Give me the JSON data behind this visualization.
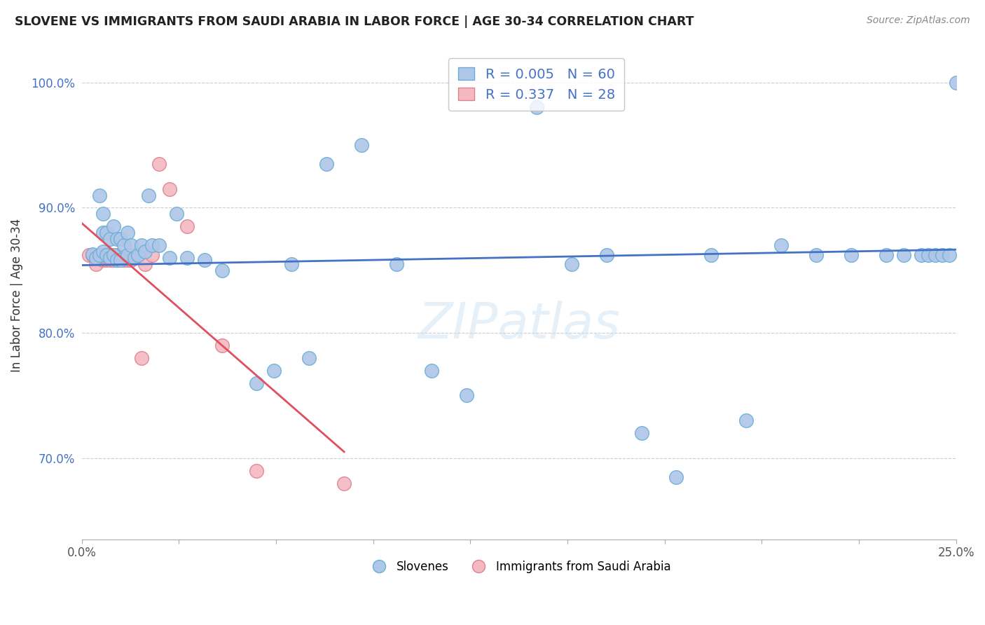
{
  "title": "SLOVENE VS IMMIGRANTS FROM SAUDI ARABIA IN LABOR FORCE | AGE 30-34 CORRELATION CHART",
  "source": "Source: ZipAtlas.com",
  "ylabel": "In Labor Force | Age 30-34",
  "y_ticks": [
    0.7,
    0.8,
    0.9,
    1.0
  ],
  "y_tick_labels": [
    "70.0%",
    "80.0%",
    "90.0%",
    "100.0%"
  ],
  "xmin": 0.0,
  "xmax": 0.25,
  "ymin": 0.635,
  "ymax": 1.025,
  "slovene_r": 0.005,
  "slovene_n": 60,
  "saudi_r": 0.337,
  "saudi_n": 28,
  "slovene_color": "#aec6e8",
  "slovene_edge_color": "#6aaed6",
  "saudi_color": "#f4b8c1",
  "saudi_edge_color": "#e08090",
  "trendline_slovene_color": "#4472c4",
  "trendline_saudi_solid_color": "#e05060",
  "trendline_saudi_dash_color": "#f0a0b0",
  "slovene_x": [
    0.003,
    0.004,
    0.005,
    0.005,
    0.006,
    0.006,
    0.006,
    0.007,
    0.007,
    0.008,
    0.008,
    0.009,
    0.009,
    0.01,
    0.01,
    0.011,
    0.011,
    0.012,
    0.013,
    0.013,
    0.014,
    0.015,
    0.016,
    0.017,
    0.018,
    0.019,
    0.02,
    0.022,
    0.025,
    0.027,
    0.03,
    0.035,
    0.04,
    0.05,
    0.055,
    0.06,
    0.065,
    0.07,
    0.08,
    0.09,
    0.1,
    0.11,
    0.13,
    0.14,
    0.15,
    0.16,
    0.17,
    0.18,
    0.19,
    0.2,
    0.21,
    0.22,
    0.23,
    0.235,
    0.24,
    0.242,
    0.244,
    0.246,
    0.248,
    0.25
  ],
  "slovene_y": [
    0.863,
    0.86,
    0.862,
    0.91,
    0.865,
    0.88,
    0.895,
    0.862,
    0.88,
    0.86,
    0.875,
    0.862,
    0.885,
    0.858,
    0.875,
    0.858,
    0.875,
    0.87,
    0.862,
    0.88,
    0.87,
    0.86,
    0.862,
    0.87,
    0.865,
    0.91,
    0.87,
    0.87,
    0.86,
    0.895,
    0.86,
    0.858,
    0.85,
    0.76,
    0.77,
    0.855,
    0.78,
    0.935,
    0.95,
    0.855,
    0.77,
    0.75,
    0.98,
    0.855,
    0.862,
    0.72,
    0.685,
    0.862,
    0.73,
    0.87,
    0.862,
    0.862,
    0.862,
    0.862,
    0.862,
    0.862,
    0.862,
    0.862,
    0.862,
    1.0
  ],
  "saudi_x": [
    0.002,
    0.003,
    0.004,
    0.005,
    0.006,
    0.006,
    0.007,
    0.007,
    0.008,
    0.008,
    0.009,
    0.01,
    0.01,
    0.011,
    0.012,
    0.013,
    0.014,
    0.015,
    0.016,
    0.017,
    0.018,
    0.02,
    0.022,
    0.025,
    0.03,
    0.04,
    0.05,
    0.075
  ],
  "saudi_y": [
    0.862,
    0.862,
    0.855,
    0.862,
    0.858,
    0.862,
    0.858,
    0.86,
    0.862,
    0.858,
    0.858,
    0.858,
    0.862,
    0.858,
    0.858,
    0.858,
    0.858,
    0.862,
    0.862,
    0.78,
    0.855,
    0.862,
    0.935,
    0.915,
    0.885,
    0.79,
    0.69,
    0.68
  ]
}
